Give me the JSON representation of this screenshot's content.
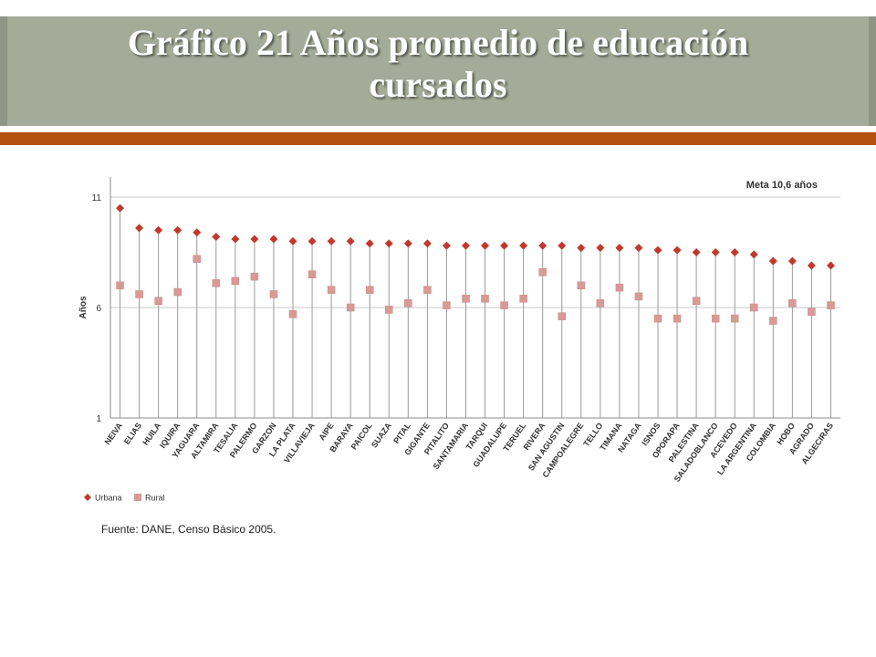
{
  "title": {
    "line1": "Gráfico 21 Años promedio de educación",
    "line2": "cursados"
  },
  "colors": {
    "title_band": "#a4ab98",
    "accent_bar": "#b4500f",
    "urbana": "#c0392b",
    "rural": "#d89a96"
  },
  "chart_data": {
    "type": "scatter",
    "style": "dumbbell",
    "categories": [
      "NEIVA",
      "ELIAS",
      "HUILA",
      "IQUIRA",
      "YAGUARA",
      "ALTAMIRA",
      "TESALIA",
      "PALERMO",
      "GARZON",
      "LA PLATA",
      "VILLAVIEJA",
      "AIPE",
      "BARAYA",
      "PAICOL",
      "SUAZA",
      "PITAL",
      "GIGANTE",
      "PITALITO",
      "SANTAMARIA",
      "TARQUI",
      "GUADALUPE",
      "TERUEL",
      "RIVERA",
      "SAN AGUSTIN",
      "CAMPOALEGRE",
      "TELLO",
      "TIMANA",
      "NATAGA",
      "ISNOS",
      "OPORAPA",
      "PALESTINA",
      "SALADOBLANCO",
      "ACEVEDO",
      "LA ARGENTINA",
      "COLOMBIA",
      "HOBO",
      "AGRADO",
      "ALGECIRAS"
    ],
    "series": [
      {
        "name": "Urbana",
        "marker": "diamond",
        "color": "#c0392b",
        "values": [
          10.5,
          9.6,
          9.5,
          9.5,
          9.4,
          9.2,
          9.1,
          9.1,
          9.1,
          9.0,
          9.0,
          9.0,
          9.0,
          8.9,
          8.9,
          8.9,
          8.9,
          8.8,
          8.8,
          8.8,
          8.8,
          8.8,
          8.8,
          8.8,
          8.7,
          8.7,
          8.7,
          8.7,
          8.6,
          8.6,
          8.5,
          8.5,
          8.5,
          8.4,
          8.1,
          8.1,
          7.9,
          7.9
        ]
      },
      {
        "name": "Rural",
        "marker": "square",
        "color": "#d89a96",
        "values": [
          7.0,
          6.6,
          6.3,
          6.7,
          8.2,
          7.1,
          7.2,
          7.4,
          6.6,
          5.7,
          7.5,
          6.8,
          6.0,
          6.8,
          5.9,
          6.2,
          6.8,
          6.1,
          6.4,
          6.4,
          6.1,
          6.4,
          7.6,
          5.6,
          7.0,
          6.2,
          6.9,
          6.5,
          5.5,
          5.5,
          6.3,
          5.5,
          5.5,
          6.0,
          5.4,
          6.2,
          5.8,
          6.1
        ]
      }
    ],
    "ylabel": "Años",
    "ylim": [
      1,
      11
    ],
    "yticks": [
      "1",
      "6",
      "11"
    ],
    "grid": "horizontal at ticks",
    "legend": {
      "position": "bottom-left",
      "items": [
        "Urbana",
        "Rural"
      ]
    },
    "annotation": "Meta 10,6 años"
  },
  "source": "Fuente: DANE, Censo Básico 2005."
}
